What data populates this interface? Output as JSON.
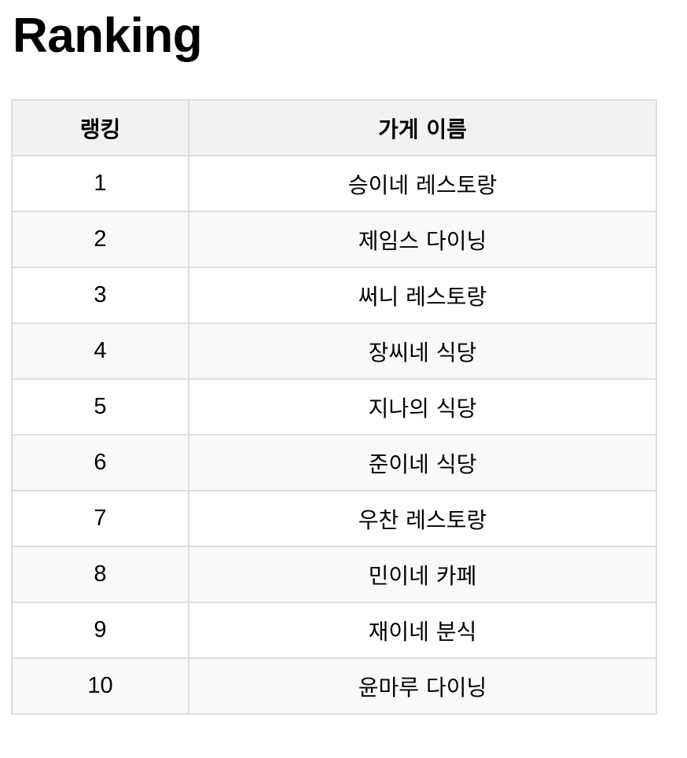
{
  "page": {
    "title": "Ranking"
  },
  "table": {
    "headers": {
      "rank": "랭킹",
      "store_name": "가게 이름"
    },
    "rows": [
      {
        "rank": "1",
        "store_name": "승이네 레스토랑"
      },
      {
        "rank": "2",
        "store_name": "제임스 다이닝"
      },
      {
        "rank": "3",
        "store_name": "써니 레스토랑"
      },
      {
        "rank": "4",
        "store_name": "장씨네 식당"
      },
      {
        "rank": "5",
        "store_name": "지나의 식당"
      },
      {
        "rank": "6",
        "store_name": "준이네 식당"
      },
      {
        "rank": "7",
        "store_name": "우찬 레스토랑"
      },
      {
        "rank": "8",
        "store_name": "민이네 카페"
      },
      {
        "rank": "9",
        "store_name": "재이네 분식"
      },
      {
        "rank": "10",
        "store_name": "윤마루 다이닝"
      }
    ]
  },
  "colors": {
    "header_background": "#f2f2f2",
    "even_row_background": "#f9f9f9",
    "border": "#dddddd"
  }
}
